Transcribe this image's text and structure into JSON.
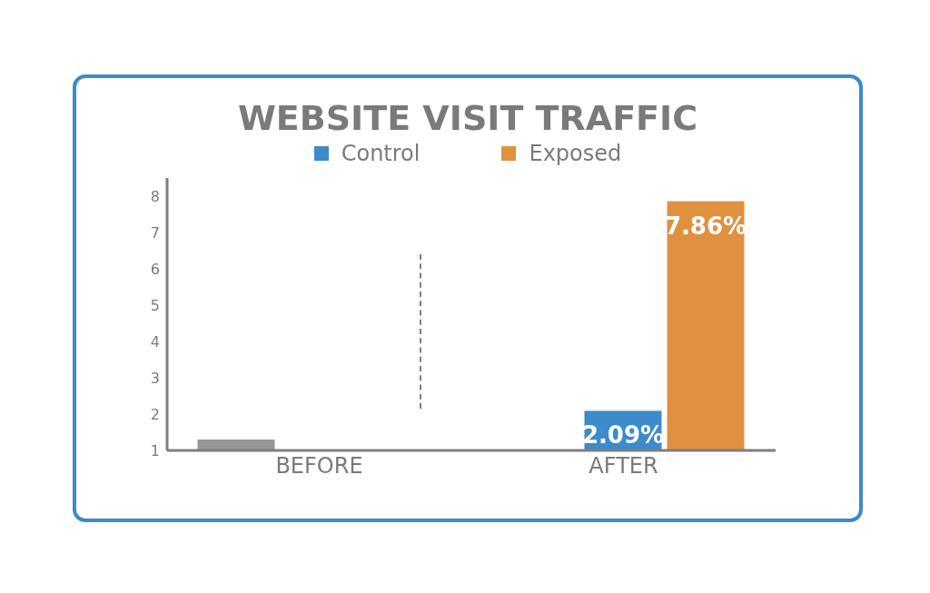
{
  "chart_data": {
    "type": "bar",
    "title": "WEBSITE VISIT TRAFFIC",
    "categories": [
      "BEFORE",
      "AFTER"
    ],
    "series": [
      {
        "color": "#979797",
        "values": [
          1.3,
          null
        ]
      },
      {
        "name": "Control",
        "color": "#3d8bc8",
        "values": [
          null,
          2.09
        ],
        "value_labels": [
          null,
          "2.09%"
        ]
      },
      {
        "name": "Exposed",
        "color": "#df9140",
        "values": [
          null,
          7.86
        ],
        "value_labels": [
          null,
          "7.86%"
        ]
      }
    ],
    "ylim": [
      1,
      8.5
    ],
    "yticks": [
      1,
      2,
      3,
      4,
      5,
      6,
      7,
      8
    ],
    "grid": false,
    "legend": "top"
  }
}
